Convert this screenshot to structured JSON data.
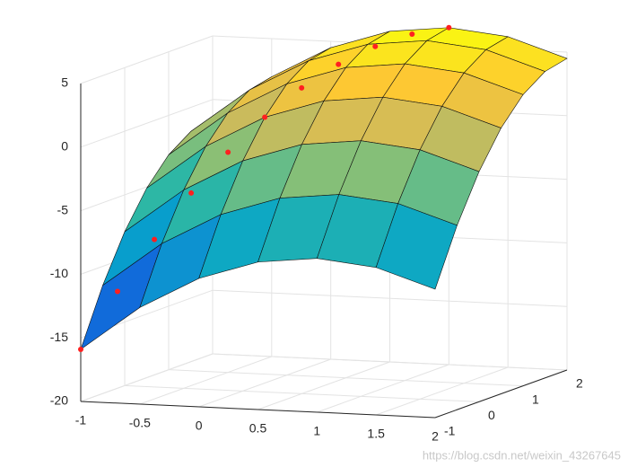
{
  "chart_data": {
    "type": "surface",
    "x": [
      -1,
      -0.5,
      0,
      0.5,
      1,
      1.5,
      2
    ],
    "y": [
      -1,
      -0.5,
      0,
      0.5,
      1,
      1.5,
      2
    ],
    "z": [
      [
        -15.9,
        -12.4,
        -9.9,
        -8.4,
        -7.9,
        -8.4,
        -9.9
      ],
      [
        -11.5,
        -8,
        -5.5,
        -4,
        -3.5,
        -4,
        -5.5
      ],
      [
        -7.9,
        -4.4,
        -1.9,
        -0.4,
        0.1,
        -0.4,
        -1.9
      ],
      [
        -5.1,
        -1.6,
        0.9,
        2.4,
        2.9,
        2.4,
        0.9
      ],
      [
        -3.1,
        0.4,
        2.9,
        4.4,
        4.9,
        4.4,
        2.9
      ],
      [
        -1.9,
        1.6,
        4.1,
        5.6,
        6.1,
        5.6,
        4.1
      ],
      [
        -1.5,
        2,
        4.5,
        6,
        6.5,
        6,
        4.5
      ]
    ],
    "colormap": "parula",
    "path": {
      "color": "#ff2020",
      "x": [
        -1,
        -0.8,
        -0.6,
        -0.4,
        -0.2,
        0,
        0.2,
        0.4,
        0.6,
        0.8,
        1
      ],
      "y": [
        -1,
        -0.7,
        -0.4,
        -0.1,
        0.2,
        0.5,
        0.8,
        1.1,
        1.4,
        1.7,
        2
      ],
      "z": [
        -15.9,
        -11.64,
        -7.84,
        -4.48,
        -1.56,
        0.9,
        2.92,
        4.48,
        5.6,
        6.28,
        6.5
      ]
    },
    "xlim": [
      -1,
      2
    ],
    "ylim": [
      -1,
      2
    ],
    "zlim": [
      -20,
      5
    ],
    "xticks": [
      -1,
      -0.5,
      0,
      0.5,
      1,
      1.5,
      2
    ],
    "yticks": [
      -1,
      0,
      1,
      2
    ],
    "zticks": [
      -20,
      -15,
      -10,
      -5,
      0,
      5
    ],
    "grid": true
  },
  "watermark": "https://blog.csdn.net/weixin_43267645"
}
